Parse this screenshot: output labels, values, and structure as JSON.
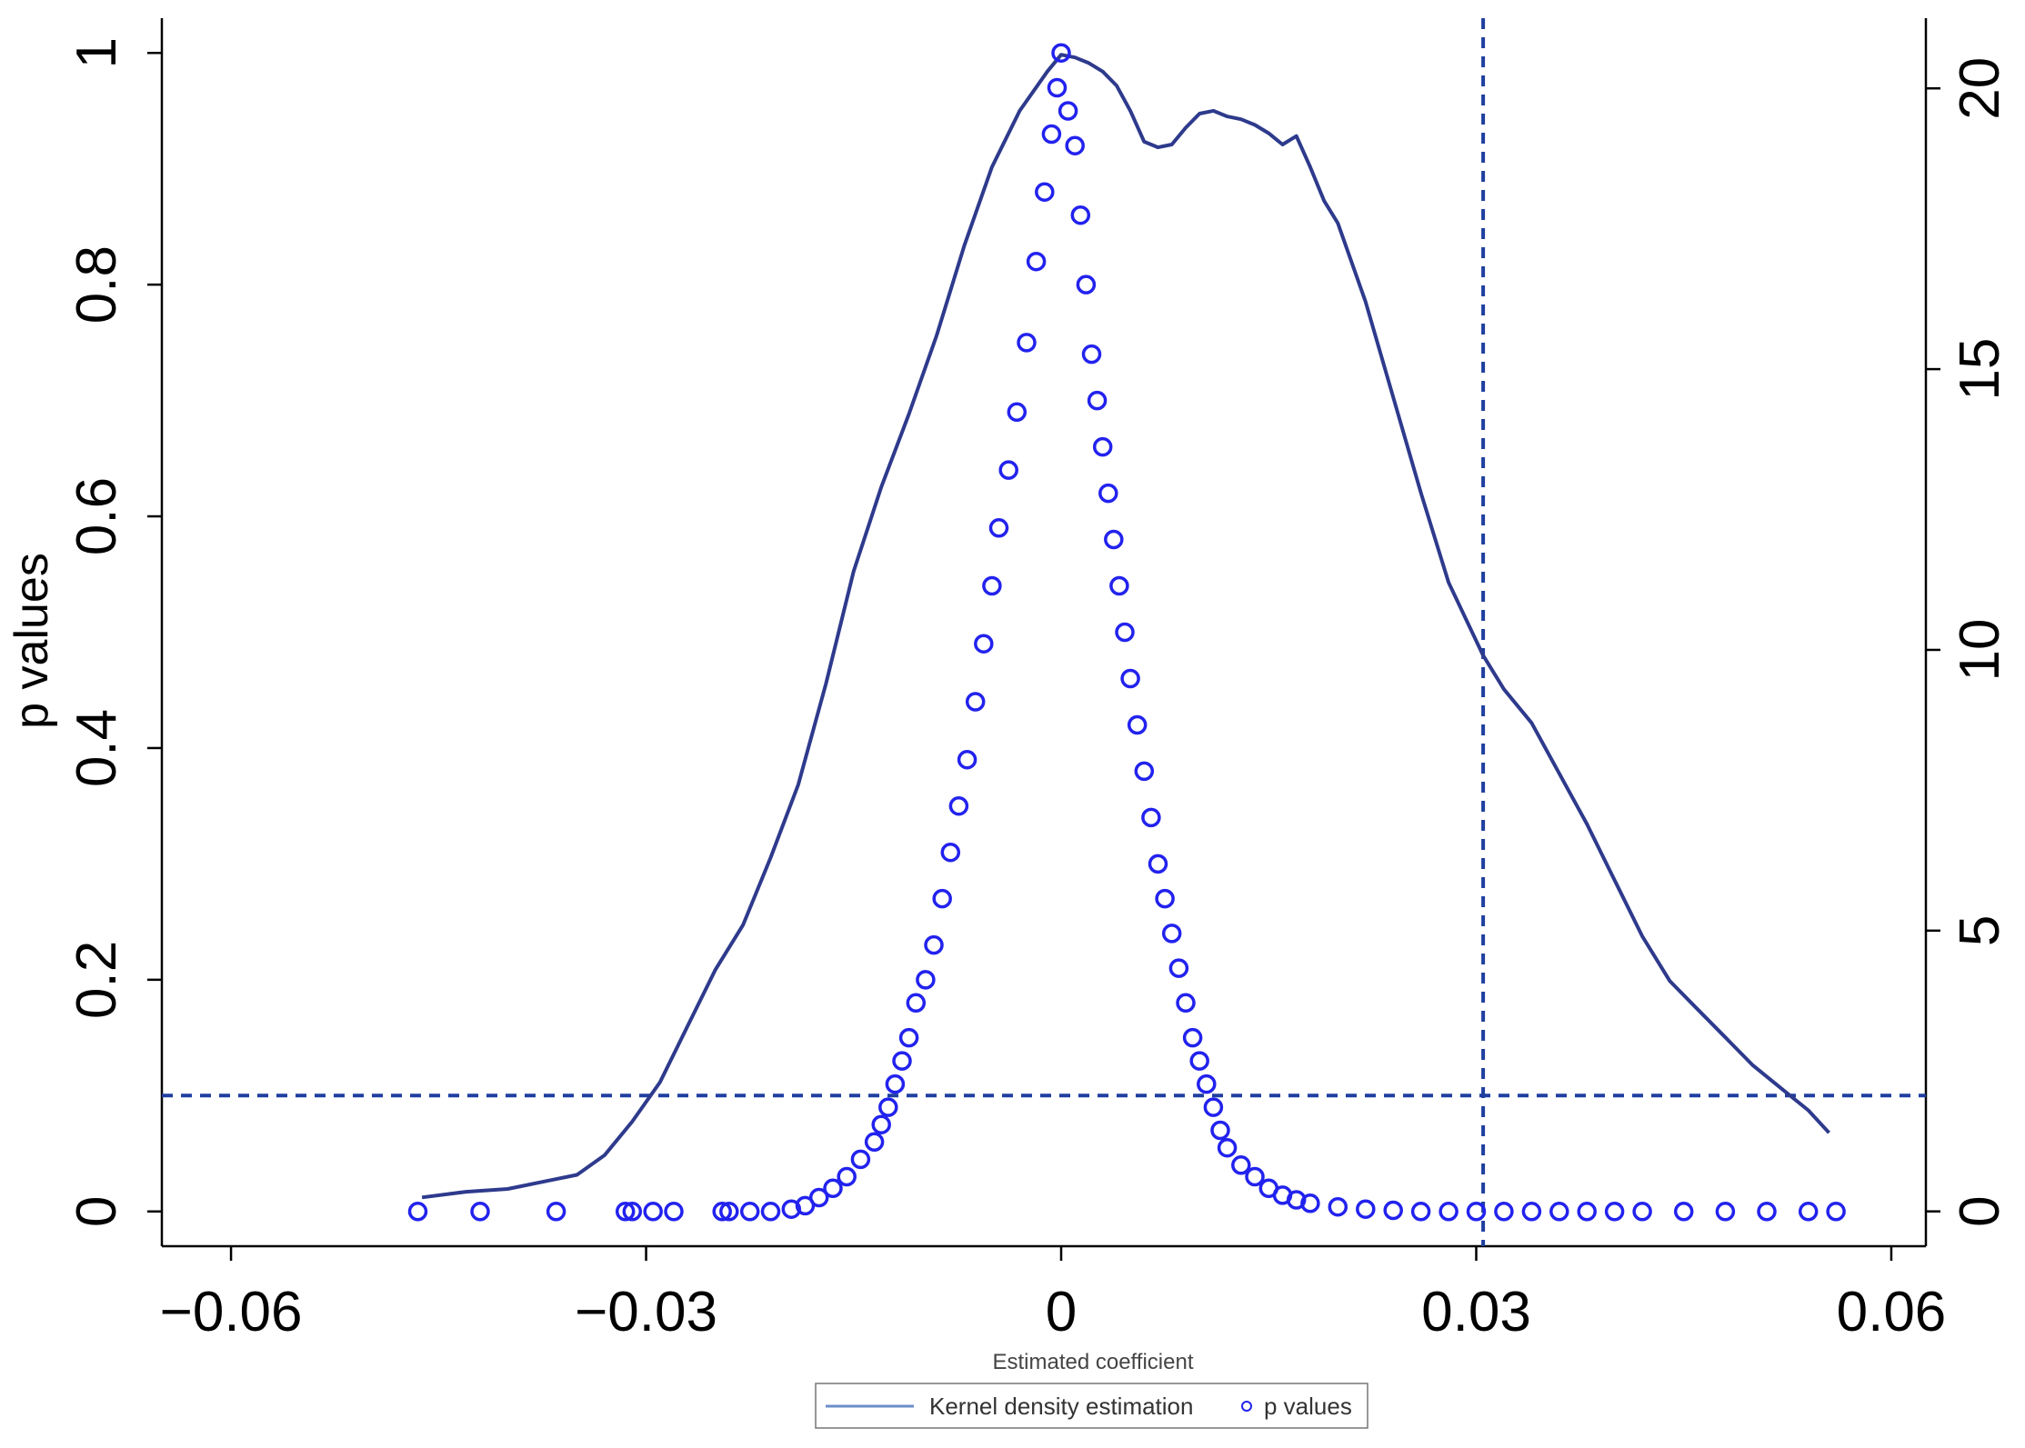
{
  "chart_data": {
    "type": "scatter",
    "title": "",
    "xlabel": "Estimated coefficient",
    "ylabel": "p values",
    "xlim": [
      -0.065,
      0.0625
    ],
    "ylim": [
      -0.03,
      1.03
    ],
    "y2lim": [
      -0.62,
      21.25
    ],
    "x_ticks": [
      -0.06,
      -0.03,
      0,
      0.03,
      0.06
    ],
    "x_tick_labels": [
      "−0.06",
      "−0.03",
      "0",
      "0.03",
      "0.06"
    ],
    "y_ticks": [
      0,
      0.2,
      0.4,
      0.6,
      0.8,
      1
    ],
    "y_tick_labels": [
      "0",
      "0.2",
      "0.4",
      "0.6",
      "0.8",
      "1"
    ],
    "y2_ticks": [
      0,
      5,
      10,
      15,
      20
    ],
    "y2_tick_labels": [
      "0",
      "5",
      "10",
      "15",
      "20"
    ],
    "reference_lines": {
      "x": 0.0305,
      "y": 0.1,
      "style": "dashed",
      "color": "#1f3fa0"
    },
    "legend": {
      "placement": "bottom-center",
      "entries": [
        {
          "label": "Kernel density estimation",
          "marker": "line",
          "color": "#6b8fc9"
        },
        {
          "label": "p values",
          "marker": "circle",
          "color": "#2222ee"
        }
      ]
    },
    "series": [
      {
        "name": "Kernel density estimation",
        "kind": "line",
        "axis": "right",
        "color": "#2e3a8c",
        "x": [
          -0.0462,
          -0.043,
          -0.04,
          -0.037,
          -0.035,
          -0.033,
          -0.031,
          -0.029,
          -0.027,
          -0.025,
          -0.023,
          -0.021,
          -0.019,
          -0.017,
          -0.015,
          -0.013,
          -0.011,
          -0.009,
          -0.007,
          -0.005,
          -0.003,
          -0.001,
          0,
          0.001,
          0.002,
          0.003,
          0.004,
          0.005,
          0.006,
          0.007,
          0.008,
          0.009,
          0.01,
          0.011,
          0.012,
          0.013,
          0.014,
          0.015,
          0.016,
          0.017,
          0.018,
          0.019,
          0.02,
          0.022,
          0.024,
          0.026,
          0.028,
          0.0305,
          0.032,
          0.034,
          0.036,
          0.038,
          0.04,
          0.042,
          0.044,
          0.046,
          0.048,
          0.05,
          0.052,
          0.054,
          0.0555
        ],
        "y": [
          0.25,
          0.35,
          0.4,
          0.55,
          0.65,
          1.0,
          1.6,
          2.3,
          3.3,
          4.3,
          5.1,
          6.3,
          7.6,
          9.4,
          11.4,
          12.9,
          14.2,
          15.6,
          17.2,
          18.6,
          19.6,
          20.3,
          20.6,
          20.55,
          20.45,
          20.3,
          20.05,
          19.6,
          19.05,
          18.95,
          19.0,
          19.3,
          19.55,
          19.6,
          19.5,
          19.45,
          19.35,
          19.2,
          19.0,
          19.15,
          18.6,
          18.0,
          17.6,
          16.2,
          14.5,
          12.8,
          11.2,
          9.9,
          9.3,
          8.7,
          7.8,
          6.9,
          5.9,
          4.9,
          4.1,
          3.6,
          3.1,
          2.6,
          2.2,
          1.8,
          1.4
        ]
      },
      {
        "name": "p values",
        "kind": "scatter",
        "axis": "left",
        "color": "#2222ee",
        "x": [
          -0.0465,
          -0.042,
          -0.0365,
          -0.0315,
          -0.031,
          -0.0295,
          -0.028,
          -0.0245,
          -0.024,
          -0.0225,
          -0.021,
          -0.0195,
          -0.0185,
          -0.0175,
          -0.0165,
          -0.0155,
          -0.0145,
          -0.0135,
          -0.013,
          -0.0125,
          -0.012,
          -0.0115,
          -0.011,
          -0.0105,
          -0.0098,
          -0.0092,
          -0.0086,
          -0.008,
          -0.0074,
          -0.0068,
          -0.0062,
          -0.0056,
          -0.005,
          -0.0045,
          -0.0038,
          -0.0032,
          -0.0025,
          -0.0018,
          -0.0012,
          -0.0007,
          -0.0003,
          0,
          0.0005,
          0.001,
          0.0014,
          0.0018,
          0.0022,
          0.0026,
          0.003,
          0.0034,
          0.0038,
          0.0042,
          0.0046,
          0.005,
          0.0055,
          0.006,
          0.0065,
          0.007,
          0.0075,
          0.008,
          0.0085,
          0.009,
          0.0095,
          0.01,
          0.0105,
          0.011,
          0.0115,
          0.012,
          0.013,
          0.014,
          0.015,
          0.016,
          0.017,
          0.018,
          0.02,
          0.022,
          0.024,
          0.026,
          0.028,
          0.03,
          0.032,
          0.034,
          0.036,
          0.038,
          0.04,
          0.042,
          0.045,
          0.048,
          0.051,
          0.054,
          0.056
        ],
        "y": [
          0,
          0,
          0,
          0,
          0,
          0,
          0,
          0,
          0,
          0,
          0,
          0.002,
          0.005,
          0.012,
          0.02,
          0.03,
          0.045,
          0.06,
          0.075,
          0.09,
          0.11,
          0.13,
          0.15,
          0.18,
          0.2,
          0.23,
          0.27,
          0.31,
          0.35,
          0.39,
          0.44,
          0.49,
          0.54,
          0.59,
          0.64,
          0.69,
          0.75,
          0.82,
          0.88,
          0.93,
          0.97,
          1.0,
          0.95,
          0.92,
          0.86,
          0.8,
          0.74,
          0.7,
          0.66,
          0.62,
          0.58,
          0.54,
          0.5,
          0.46,
          0.42,
          0.38,
          0.34,
          0.3,
          0.27,
          0.24,
          0.21,
          0.18,
          0.15,
          0.13,
          0.11,
          0.09,
          0.07,
          0.055,
          0.04,
          0.03,
          0.02,
          0.014,
          0.01,
          0.007,
          0.004,
          0.002,
          0.001,
          0,
          0,
          0,
          0,
          0,
          0,
          0,
          0,
          0,
          0,
          0,
          0,
          0,
          0
        ]
      }
    ]
  }
}
